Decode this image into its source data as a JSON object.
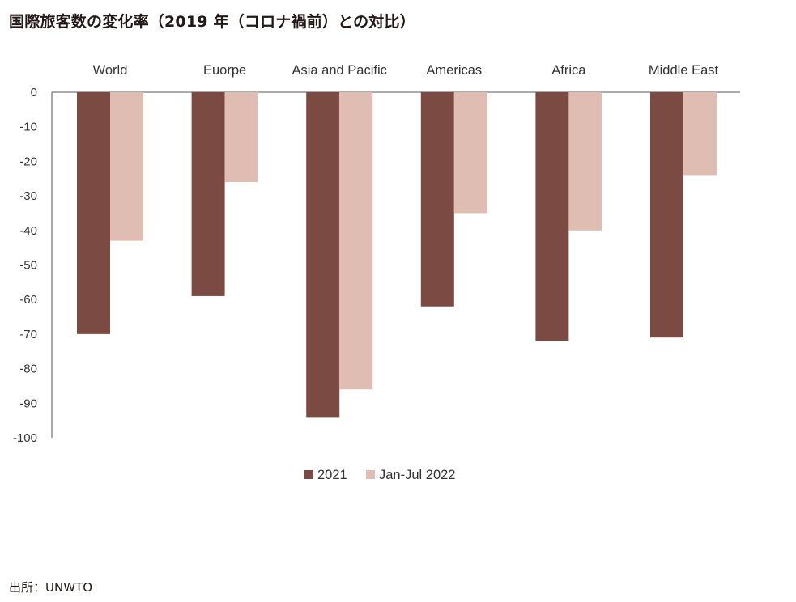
{
  "title": "国際旅客数の変化率（2019 年（コロナ禍前）との対比）",
  "source": "出所：UNWTO",
  "chart_data": {
    "type": "bar",
    "categories": [
      "World",
      "Euorpe",
      "Asia and Pacific",
      "Americas",
      "Africa",
      "Middle East"
    ],
    "series": [
      {
        "name": "2021",
        "color": "#7b4a42",
        "values": [
          -70,
          -59,
          -94,
          -62,
          -72,
          -71
        ]
      },
      {
        "name": "Jan-Jul 2022",
        "color": "#e0bdb3",
        "values": [
          -43,
          -26,
          -86,
          -35,
          -40,
          -24
        ]
      }
    ],
    "yticks": [
      "0",
      "-10",
      "-20",
      "-30",
      "-40",
      "-50",
      "-60",
      "-70",
      "-80",
      "-90",
      "-100"
    ],
    "ylim": [
      -100,
      0
    ],
    "legend_position": "bottom",
    "grid": false
  }
}
